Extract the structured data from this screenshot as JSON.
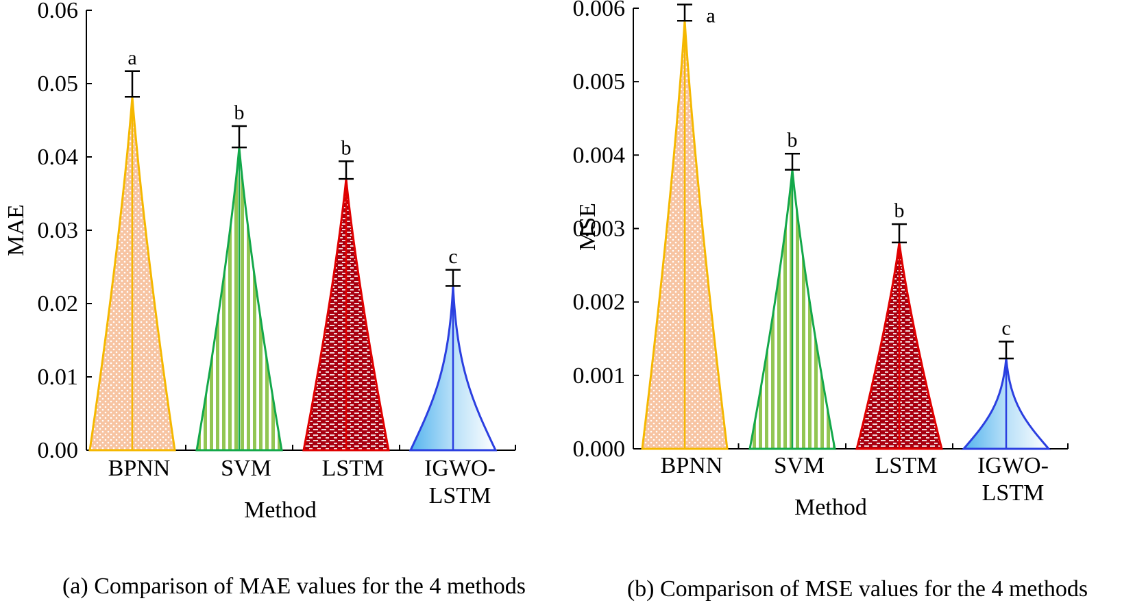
{
  "chart_data": [
    {
      "type": "bar",
      "caption": "(a) Comparison of MAE values for the 4 methods",
      "xlabel": "Method",
      "ylabel": "MAE",
      "ylim": [
        0,
        0.06
      ],
      "yticks": [
        "0.00",
        "0.01",
        "0.02",
        "0.03",
        "0.04",
        "0.05",
        "0.06"
      ],
      "categories": [
        {
          "lines": [
            "BPNN"
          ]
        },
        {
          "lines": [
            "SVM"
          ]
        },
        {
          "lines": [
            "LSTM"
          ]
        },
        {
          "lines": [
            "IGWO-",
            "LSTM"
          ]
        }
      ],
      "values": [
        0.0482,
        0.0413,
        0.037,
        0.0224
      ],
      "errors": [
        0.0035,
        0.0029,
        0.0024,
        0.0022
      ],
      "significance": [
        "a",
        "b",
        "b",
        "c"
      ]
    },
    {
      "type": "bar",
      "caption": "(b) Comparison of MSE values for the 4 methods",
      "xlabel": "Method",
      "ylabel": "MSE",
      "ylim": [
        0,
        0.006
      ],
      "yticks": [
        "0.000",
        "0.001",
        "0.002",
        "0.003",
        "0.004",
        "0.005",
        "0.006"
      ],
      "categories": [
        {
          "lines": [
            "BPNN"
          ]
        },
        {
          "lines": [
            "SVM"
          ]
        },
        {
          "lines": [
            "LSTM"
          ]
        },
        {
          "lines": [
            "IGWO-",
            "LSTM"
          ]
        }
      ],
      "values": [
        0.00583,
        0.0038,
        0.00281,
        0.00123
      ],
      "errors": [
        0.00022,
        0.00022,
        0.00025,
        0.00023
      ],
      "significance": [
        "a",
        "b",
        "b",
        "c"
      ]
    }
  ],
  "styles": {
    "bars": [
      {
        "name": "BPNN",
        "stroke": "#f5b800",
        "fill": "#f7c4a2",
        "pattern": "dots"
      },
      {
        "name": "SVM",
        "stroke": "#13a84a",
        "fill": "#92c653",
        "pattern": "vlines"
      },
      {
        "name": "LSTM",
        "stroke": "#e00000",
        "fill": "#a80010",
        "pattern": "dashes"
      },
      {
        "name": "IGWO-LSTM",
        "stroke": "#2b3fe0",
        "fill": "#7cc4f0",
        "pattern": "gradient"
      }
    ],
    "error_bar_color": "#000000"
  }
}
